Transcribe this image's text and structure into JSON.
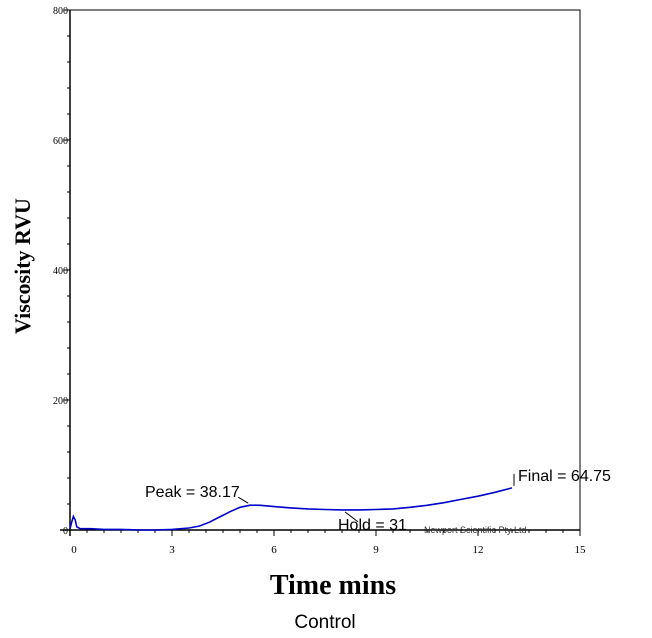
{
  "chart_data": {
    "type": "line",
    "title": "",
    "xlabel": "Time mins",
    "ylabel": "Viscosity RVU",
    "caption": "Control",
    "xlim": [
      0,
      15
    ],
    "ylim": [
      0,
      800
    ],
    "x_ticks": [
      0,
      3,
      6,
      9,
      12,
      15
    ],
    "y_ticks": [
      0,
      200,
      400,
      600,
      800
    ],
    "series": [
      {
        "color": "#0000cc",
        "points": [
          [
            0.0,
            2
          ],
          [
            0.05,
            12
          ],
          [
            0.1,
            21
          ],
          [
            0.15,
            16
          ],
          [
            0.2,
            5
          ],
          [
            0.3,
            2
          ],
          [
            0.6,
            2
          ],
          [
            1.0,
            1
          ],
          [
            1.5,
            1
          ],
          [
            2.0,
            0
          ],
          [
            2.5,
            0
          ],
          [
            3.0,
            1
          ],
          [
            3.5,
            3
          ],
          [
            3.8,
            6
          ],
          [
            4.1,
            12
          ],
          [
            4.4,
            20
          ],
          [
            4.7,
            28
          ],
          [
            5.0,
            35
          ],
          [
            5.3,
            38.17
          ],
          [
            5.6,
            38
          ],
          [
            6.0,
            36
          ],
          [
            6.5,
            34
          ],
          [
            7.0,
            32.5
          ],
          [
            7.5,
            31.5
          ],
          [
            8.0,
            31
          ],
          [
            8.5,
            31
          ],
          [
            9.0,
            31.5
          ],
          [
            9.5,
            32.5
          ],
          [
            10.0,
            35
          ],
          [
            10.5,
            38
          ],
          [
            11.0,
            42
          ],
          [
            11.5,
            47
          ],
          [
            12.0,
            52
          ],
          [
            12.5,
            58
          ],
          [
            13.0,
            64.75
          ]
        ]
      }
    ],
    "annotations": [
      {
        "text": "Peak = 38.17",
        "x": 5.3,
        "y": 38.17
      },
      {
        "text": "Hold = 31",
        "x": 8.0,
        "y": 31
      },
      {
        "text": "Final = 64.75",
        "x": 13.0,
        "y": 64.75
      }
    ],
    "watermark": "Newport Scientific Pty Ltd"
  }
}
